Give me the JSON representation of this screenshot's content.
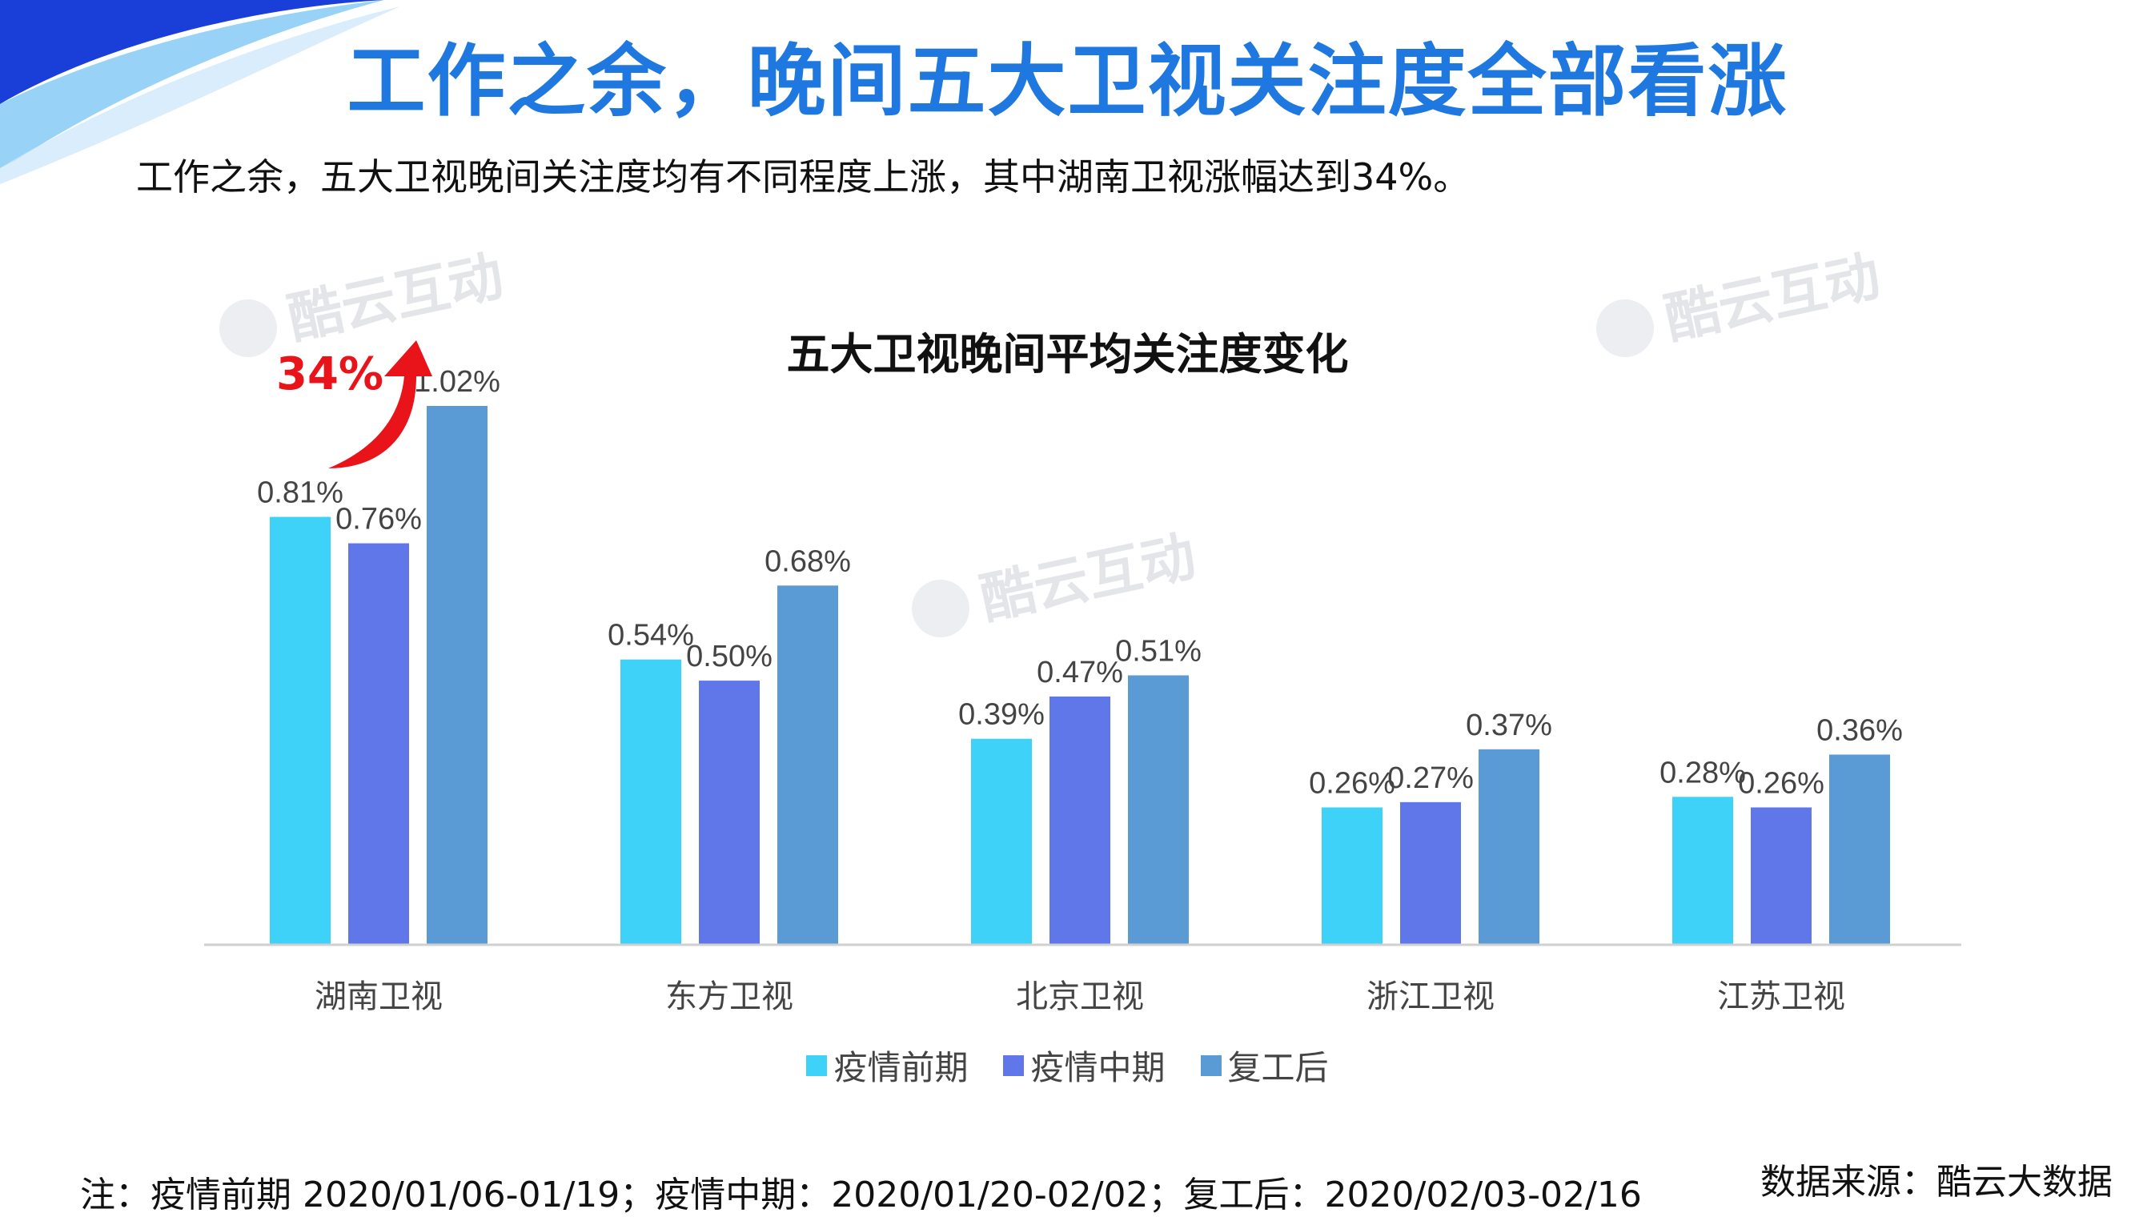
{
  "title": "工作之余，晚间五大卫视关注度全部看涨",
  "subtitle": "工作之余，五大卫视晚间关注度均有不同程度上涨，其中湖南卫视涨幅达到34%。",
  "highlight": "34%",
  "watermark": "酷云互动",
  "note": "注：疫情前期 2020/01/06-01/19；疫情中期：2020/01/20-02/02；复工后：2020/02/03-02/16",
  "source": "数据来源：酷云大数据",
  "chart_data": {
    "type": "bar",
    "title": "五大卫视晚间平均关注度变化",
    "categories": [
      "湖南卫视",
      "东方卫视",
      "北京卫视",
      "浙江卫视",
      "江苏卫视"
    ],
    "series": [
      {
        "name": "疫情前期",
        "color": "#3fd2f8",
        "values": [
          0.81,
          0.54,
          0.39,
          0.26,
          0.28
        ],
        "labels": [
          "0.81%",
          "0.54%",
          "0.39%",
          "0.26%",
          "0.28%"
        ]
      },
      {
        "name": "疫情中期",
        "color": "#6077e9",
        "values": [
          0.76,
          0.5,
          0.47,
          0.27,
          0.26
        ],
        "labels": [
          "0.76%",
          "0.50%",
          "0.47%",
          "0.27%",
          "0.26%"
        ]
      },
      {
        "name": "复工后",
        "color": "#5b9bd5",
        "values": [
          1.02,
          0.68,
          0.51,
          0.37,
          0.36
        ],
        "labels": [
          "1.02%",
          "0.68%",
          "0.51%",
          "0.37%",
          "0.36%"
        ]
      }
    ],
    "ylim": [
      0,
      1.2
    ],
    "grid": false,
    "legend": "bottom",
    "unit": "%"
  }
}
